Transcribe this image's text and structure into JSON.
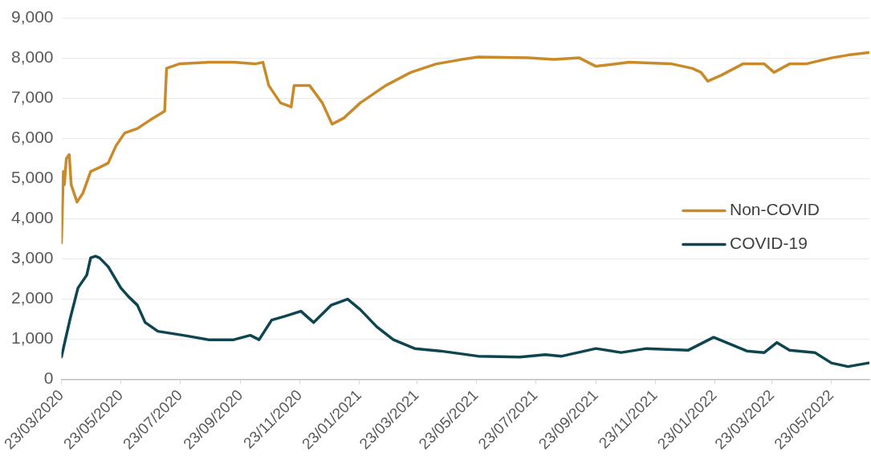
{
  "chart_data": {
    "type": "line",
    "xlim": [
      "2020-03-23",
      "2022-07-01"
    ],
    "xticks": [
      {
        "value": "2020-03-23",
        "label": "23/03/2020"
      },
      {
        "value": "2020-05-23",
        "label": "23/05/2020"
      },
      {
        "value": "2020-07-23",
        "label": "23/07/2020"
      },
      {
        "value": "2020-09-23",
        "label": "23/09/2020"
      },
      {
        "value": "2020-11-23",
        "label": "23/11/2020"
      },
      {
        "value": "2021-01-23",
        "label": "23/01/2021"
      },
      {
        "value": "2021-03-23",
        "label": "23/03/2021"
      },
      {
        "value": "2021-05-23",
        "label": "23/05/2021"
      },
      {
        "value": "2021-07-23",
        "label": "23/07/2021"
      },
      {
        "value": "2021-09-23",
        "label": "23/09/2021"
      },
      {
        "value": "2021-11-23",
        "label": "23/11/2021"
      },
      {
        "value": "2022-01-23",
        "label": "23/01/2022"
      },
      {
        "value": "2022-03-23",
        "label": "23/03/2022"
      },
      {
        "value": "2022-05-23",
        "label": "23/05/2022"
      }
    ],
    "ylim": [
      0,
      9000
    ],
    "yticks": [
      {
        "value": 0,
        "label": "0"
      },
      {
        "value": 1000,
        "label": "1,000"
      },
      {
        "value": 2000,
        "label": "2,000"
      },
      {
        "value": 3000,
        "label": "3,000"
      },
      {
        "value": 4000,
        "label": "4,000"
      },
      {
        "value": 5000,
        "label": "5,000"
      },
      {
        "value": 6000,
        "label": "6,000"
      },
      {
        "value": 7000,
        "label": "7,000"
      },
      {
        "value": 8000,
        "label": "8,000"
      },
      {
        "value": 9000,
        "label": "9,000"
      }
    ],
    "grid": "y",
    "legend": "right",
    "marker": "none",
    "line_style": "solid",
    "series": [
      {
        "name": "Non-COVID",
        "color": "#c98b2a",
        "x": [
          "2020-03-23",
          "2020-03-25",
          "2020-03-26",
          "2020-03-28",
          "2020-03-31",
          "2020-04-02",
          "2020-04-08",
          "2020-04-14",
          "2020-04-22",
          "2020-05-01",
          "2020-05-10",
          "2020-05-18",
          "2020-05-27",
          "2020-06-09",
          "2020-06-22",
          "2020-07-07",
          "2020-07-09",
          "2020-07-22",
          "2020-08-21",
          "2020-09-16",
          "2020-10-08",
          "2020-10-16",
          "2020-10-22",
          "2020-11-03",
          "2020-11-14",
          "2020-11-17",
          "2020-12-03",
          "2020-12-16",
          "2020-12-26",
          "2021-01-07",
          "2021-01-24",
          "2021-02-19",
          "2021-03-17",
          "2021-04-12",
          "2021-05-08",
          "2021-05-25",
          "2021-07-16",
          "2021-08-11",
          "2021-09-06",
          "2021-09-23",
          "2021-10-27",
          "2021-12-10",
          "2021-12-31",
          "2022-01-09",
          "2022-01-16",
          "2022-01-30",
          "2022-02-21",
          "2022-03-15",
          "2022-03-25",
          "2022-04-10",
          "2022-04-27",
          "2022-05-23",
          "2022-06-09",
          "2022-06-30"
        ],
        "values": [
          3400,
          5180,
          4850,
          5500,
          5600,
          4850,
          4420,
          4640,
          5180,
          5280,
          5390,
          5820,
          6140,
          6250,
          6460,
          6680,
          7750,
          7860,
          7900,
          7900,
          7860,
          7900,
          7320,
          6890,
          6790,
          7320,
          7320,
          6890,
          6360,
          6510,
          6890,
          7320,
          7650,
          7860,
          7970,
          8030,
          8010,
          7970,
          8010,
          7800,
          7900,
          7860,
          7750,
          7650,
          7430,
          7580,
          7860,
          7860,
          7650,
          7860,
          7860,
          8010,
          8080,
          8140
        ]
      },
      {
        "name": "COVID-19",
        "color": "#0d4650",
        "x": [
          "2020-03-23",
          "2020-03-27",
          "2020-04-01",
          "2020-04-09",
          "2020-04-18",
          "2020-04-22",
          "2020-04-27",
          "2020-05-01",
          "2020-05-10",
          "2020-05-23",
          "2020-05-31",
          "2020-06-09",
          "2020-06-17",
          "2020-06-30",
          "2020-07-26",
          "2020-08-21",
          "2020-09-16",
          "2020-10-03",
          "2020-10-12",
          "2020-10-25",
          "2020-11-07",
          "2020-11-24",
          "2020-12-07",
          "2020-12-25",
          "2021-01-11",
          "2021-01-24",
          "2021-02-10",
          "2021-02-27",
          "2021-03-21",
          "2021-04-16",
          "2021-05-25",
          "2021-07-07",
          "2021-08-02",
          "2021-08-19",
          "2021-09-23",
          "2021-10-19",
          "2021-11-14",
          "2021-12-27",
          "2022-01-22",
          "2022-02-08",
          "2022-02-25",
          "2022-03-15",
          "2022-03-28",
          "2022-04-10",
          "2022-05-06",
          "2022-05-23",
          "2022-06-09",
          "2022-06-30"
        ],
        "values": [
          560,
          990,
          1520,
          2280,
          2600,
          3030,
          3070,
          3030,
          2810,
          2280,
          2060,
          1850,
          1420,
          1200,
          1100,
          990,
          990,
          1100,
          990,
          1480,
          1570,
          1700,
          1420,
          1850,
          2000,
          1740,
          1310,
          990,
          770,
          710,
          580,
          560,
          620,
          580,
          770,
          670,
          770,
          730,
          1050,
          880,
          710,
          670,
          920,
          730,
          670,
          410,
          320,
          410
        ]
      }
    ]
  }
}
